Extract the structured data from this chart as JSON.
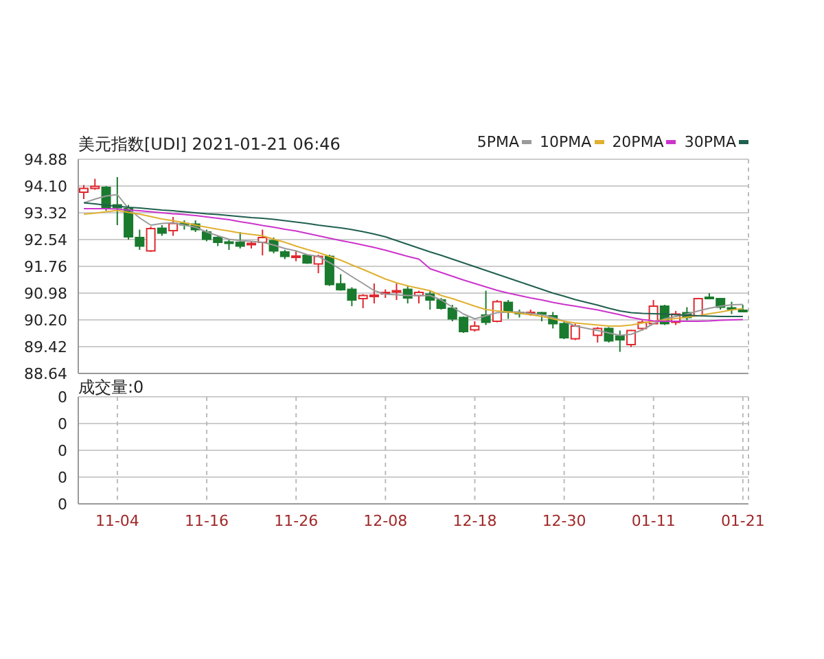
{
  "chart_data": [
    {
      "type": "candlestick",
      "title": "美元指数[UDI] 2021-01-21 06:46",
      "categories": [
        null,
        null,
        null,
        null,
        null,
        null,
        null,
        null,
        null,
        null,
        null,
        null,
        null,
        null,
        null,
        null,
        null,
        null,
        null,
        null,
        null,
        null,
        null,
        null,
        null,
        null,
        null,
        null,
        null,
        null,
        null,
        null,
        null,
        null,
        null,
        null,
        null,
        null,
        null,
        null,
        null,
        null,
        null,
        null,
        null,
        null,
        null,
        null,
        null,
        null,
        null,
        null,
        null,
        null,
        null,
        null,
        null,
        null,
        null,
        null
      ],
      "ohlc": [
        [
          93.92,
          94.13,
          93.72,
          94.03
        ],
        [
          94.03,
          94.31,
          93.99,
          94.09
        ],
        [
          94.06,
          94.1,
          93.38,
          93.44
        ],
        [
          93.55,
          94.36,
          92.96,
          93.47
        ],
        [
          93.44,
          93.55,
          92.54,
          92.62
        ],
        [
          92.6,
          92.83,
          92.24,
          92.35
        ],
        [
          92.21,
          92.92,
          92.18,
          92.86
        ],
        [
          92.87,
          92.96,
          92.65,
          92.73
        ],
        [
          92.8,
          93.2,
          92.65,
          93.01
        ],
        [
          93.01,
          93.1,
          92.83,
          93.0
        ],
        [
          92.99,
          93.1,
          92.76,
          92.83
        ],
        [
          92.76,
          92.83,
          92.49,
          92.55
        ],
        [
          92.6,
          92.65,
          92.35,
          92.46
        ],
        [
          92.47,
          92.55,
          92.24,
          92.45
        ],
        [
          92.46,
          92.76,
          92.28,
          92.35
        ],
        [
          92.41,
          92.49,
          92.28,
          92.43
        ],
        [
          92.46,
          92.83,
          92.08,
          92.6
        ],
        [
          92.51,
          92.6,
          92.14,
          92.21
        ],
        [
          92.18,
          92.24,
          91.97,
          92.05
        ],
        [
          92.04,
          92.21,
          91.91,
          92.06
        ],
        [
          92.08,
          92.1,
          91.83,
          91.86
        ],
        [
          91.83,
          92.1,
          91.56,
          92.05
        ],
        [
          92.05,
          92.1,
          91.19,
          91.23
        ],
        [
          91.25,
          91.53,
          91.05,
          91.08
        ],
        [
          91.09,
          91.15,
          90.6,
          90.78
        ],
        [
          90.82,
          90.95,
          90.54,
          90.91
        ],
        [
          90.9,
          91.26,
          90.68,
          90.92
        ],
        [
          90.98,
          91.09,
          90.84,
          91.0
        ],
        [
          91.03,
          91.26,
          90.78,
          91.05
        ],
        [
          91.09,
          91.19,
          90.68,
          90.84
        ],
        [
          90.91,
          91.05,
          90.68,
          91.0
        ],
        [
          90.95,
          91.05,
          90.5,
          90.78
        ],
        [
          90.78,
          90.84,
          90.5,
          90.54
        ],
        [
          90.54,
          90.64,
          90.16,
          90.23
        ],
        [
          90.27,
          90.3,
          89.82,
          89.86
        ],
        [
          89.91,
          90.16,
          89.86,
          90.02
        ],
        [
          90.34,
          91.05,
          90.05,
          90.13
        ],
        [
          90.16,
          90.78,
          90.13,
          90.73
        ],
        [
          90.71,
          90.78,
          90.23,
          90.43
        ],
        [
          90.42,
          90.5,
          90.27,
          90.41
        ],
        [
          90.4,
          90.5,
          90.32,
          90.42
        ],
        [
          90.41,
          90.43,
          90.16,
          90.38
        ],
        [
          90.32,
          90.43,
          89.95,
          90.09
        ],
        [
          90.09,
          90.16,
          89.64,
          89.68
        ],
        [
          89.65,
          90.09,
          89.61,
          90.02
        ],
        null,
        [
          89.75,
          89.99,
          89.54,
          89.95
        ],
        [
          89.95,
          89.99,
          89.54,
          89.59
        ],
        [
          89.73,
          89.89,
          89.27,
          89.62
        ],
        [
          89.48,
          89.91,
          89.41,
          89.89
        ],
        [
          89.95,
          90.19,
          89.89,
          90.13
        ],
        [
          90.09,
          90.78,
          90.09,
          90.6
        ],
        [
          90.6,
          90.64,
          90.05,
          90.09
        ],
        [
          90.13,
          90.46,
          90.05,
          90.37
        ],
        [
          90.41,
          90.57,
          90.19,
          90.27
        ],
        [
          90.32,
          90.84,
          90.3,
          90.82
        ],
        [
          90.86,
          90.98,
          90.82,
          90.84
        ],
        [
          90.82,
          90.84,
          90.5,
          90.57
        ],
        [
          90.55,
          90.73,
          90.37,
          90.54
        ],
        [
          90.48,
          90.64,
          90.43,
          90.47
        ]
      ],
      "colors": [
        "#e0282e",
        "#e0282e",
        "#1a7a2e",
        "#1a7a2e",
        "#1a7a2e",
        "#1a7a2e",
        "#e0282e",
        "#1a7a2e",
        "#e0282e",
        "#1a7a2e",
        "#1a7a2e",
        "#1a7a2e",
        "#1a7a2e",
        "#1a7a2e",
        "#1a7a2e",
        "#e0282e",
        "#e0282e",
        "#1a7a2e",
        "#1a7a2e",
        "#e0282e",
        "#1a7a2e",
        "#e0282e",
        "#1a7a2e",
        "#1a7a2e",
        "#1a7a2e",
        "#e0282e",
        "#e0282e",
        "#e0282e",
        "#e0282e",
        "#1a7a2e",
        "#e0282e",
        "#1a7a2e",
        "#1a7a2e",
        "#1a7a2e",
        "#1a7a2e",
        "#e0282e",
        "#1a7a2e",
        "#e0282e",
        "#1a7a2e",
        "#1a7a2e",
        "#e0282e",
        "#1a7a2e",
        "#1a7a2e",
        "#1a7a2e",
        "#e0282e",
        null,
        "#e0282e",
        "#1a7a2e",
        "#1a7a2e",
        "#e0282e",
        "#e0282e",
        "#e0282e",
        "#1a7a2e",
        "#e0282e",
        "#1a7a2e",
        "#e0282e",
        "#1a7a2e",
        "#1a7a2e",
        "#1a7a2e",
        "#1a7a2e"
      ],
      "series": [
        {
          "type": "line",
          "name": "5PMA",
          "color": "#9a9a9a",
          "values": [
            93.61,
            93.72,
            93.81,
            93.85,
            93.44,
            93.17,
            92.96,
            93.01,
            93.03,
            92.96,
            92.9,
            92.76,
            92.65,
            92.55,
            92.51,
            92.49,
            92.46,
            92.38,
            92.28,
            92.21,
            92.1,
            92.05,
            91.87,
            91.67,
            91.46,
            91.26,
            91.05,
            90.95,
            90.93,
            90.91,
            90.91,
            90.91,
            90.78,
            90.57,
            90.37,
            90.23,
            90.32,
            90.41,
            90.43,
            90.43,
            90.39,
            90.35,
            90.27,
            90.16,
            90.02,
            null,
            89.89,
            89.82,
            89.75,
            89.78,
            89.91,
            90.09,
            90.23,
            90.3,
            90.37,
            90.46,
            90.54,
            90.6,
            90.64,
            90.65
          ]
        },
        {
          "type": "line",
          "name": "10PMA",
          "color": "#e0b030",
          "values": [
            93.28,
            93.31,
            93.35,
            93.39,
            93.33,
            93.28,
            93.21,
            93.14,
            93.09,
            93.03,
            92.96,
            92.9,
            92.84,
            92.79,
            92.73,
            92.69,
            92.65,
            92.55,
            92.46,
            92.35,
            92.25,
            92.16,
            92.05,
            91.94,
            91.8,
            91.67,
            91.53,
            91.39,
            91.28,
            91.19,
            91.12,
            91.05,
            90.91,
            90.82,
            90.71,
            90.6,
            90.5,
            90.46,
            90.43,
            90.39,
            90.35,
            90.3,
            90.23,
            90.16,
            90.11,
            null,
            90.05,
            90.02,
            90.02,
            90.05,
            90.11,
            90.16,
            90.2,
            90.24,
            90.28,
            90.32,
            90.38,
            90.43,
            90.49,
            90.53
          ]
        },
        {
          "type": "line",
          "name": "20PMA",
          "color": "#cc33cc",
          "values": [
            93.44,
            93.44,
            93.44,
            93.43,
            93.4,
            93.38,
            93.35,
            93.32,
            93.29,
            93.27,
            93.24,
            93.2,
            93.16,
            93.12,
            93.06,
            93.01,
            92.95,
            92.9,
            92.84,
            92.79,
            92.72,
            92.65,
            92.58,
            92.51,
            92.45,
            92.38,
            92.31,
            92.23,
            92.14,
            92.05,
            91.97,
            91.69,
            91.58,
            91.47,
            91.36,
            91.26,
            91.16,
            91.06,
            90.98,
            90.91,
            90.84,
            90.78,
            90.71,
            90.65,
            90.6,
            null,
            90.49,
            90.42,
            90.35,
            90.27,
            90.21,
            90.17,
            90.16,
            90.16,
            90.16,
            90.16,
            90.17,
            90.19,
            90.2,
            90.21
          ]
        },
        {
          "type": "line",
          "name": "30PMA",
          "color": "#1f5f4f",
          "values": [
            93.61,
            93.58,
            93.54,
            93.51,
            93.48,
            93.46,
            93.43,
            93.4,
            93.38,
            93.35,
            93.32,
            93.29,
            93.27,
            93.24,
            93.21,
            93.18,
            93.16,
            93.13,
            93.09,
            93.05,
            93.01,
            92.96,
            92.92,
            92.88,
            92.83,
            92.77,
            92.7,
            92.62,
            92.51,
            92.4,
            92.29,
            92.18,
            92.08,
            91.97,
            91.86,
            91.75,
            91.64,
            91.53,
            91.42,
            91.31,
            91.2,
            91.09,
            90.98,
            90.89,
            90.79,
            null,
            90.63,
            90.54,
            90.46,
            90.41,
            90.39,
            90.38,
            90.37,
            90.35,
            90.34,
            90.32,
            90.31,
            90.3,
            90.3,
            90.3
          ]
        }
      ],
      "ylim": [
        88.64,
        94.88
      ],
      "yticks": [
        88.64,
        {
          "value": 89.42,
          "label": "89.42"
        },
        {
          "value": 90.2,
          "label": "90.20"
        },
        90.98,
        91.76,
        92.54,
        93.32,
        {
          "value": 94.1,
          "label": "94.10"
        },
        94.88
      ],
      "grid": true,
      "legend": "top right",
      "tick_labels": "y"
    },
    {
      "type": "other",
      "title": "成交量:0",
      "categories": [
        null,
        null,
        null,
        "11-04",
        null,
        null,
        null,
        null,
        null,
        null,
        null,
        "11-16",
        null,
        null,
        null,
        null,
        null,
        null,
        null,
        "11-26",
        null,
        null,
        null,
        null,
        null,
        null,
        null,
        "12-08",
        null,
        null,
        null,
        null,
        null,
        null,
        null,
        "12-18",
        null,
        null,
        null,
        null,
        null,
        null,
        null,
        "12-30",
        null,
        null,
        null,
        null,
        null,
        null,
        null,
        "01-11",
        null,
        null,
        null,
        null,
        null,
        null,
        null,
        "01-21"
      ],
      "y_categories": [
        "0",
        "0",
        "0",
        "0",
        "0"
      ]
    }
  ]
}
